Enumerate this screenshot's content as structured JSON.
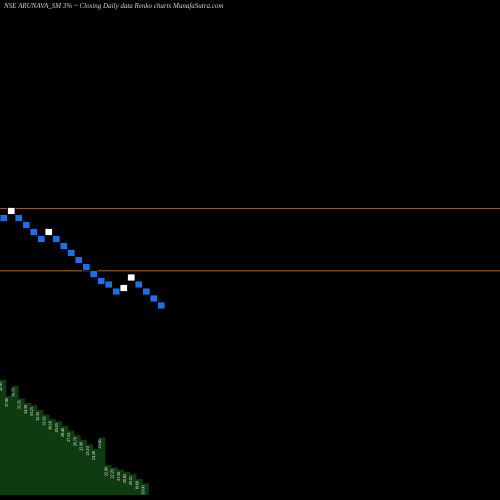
{
  "header": {
    "title": "NSE ARUNAVA_SM 3% ~  Closing Daily data  Renko  charts MunafaSutra.com"
  },
  "colors": {
    "background": "#000000",
    "up_brick": "#ffffff",
    "down_brick": "#1e6fe6",
    "level_line": "#c87b2a",
    "volume_fill": "#0e3b10"
  },
  "chart_data": {
    "type": "renko",
    "brick_size_percent": 3,
    "bricks": [
      {
        "dir": "down",
        "level": 0
      },
      {
        "dir": "up",
        "level": 1
      },
      {
        "dir": "down",
        "level": 0
      },
      {
        "dir": "down",
        "level": -1
      },
      {
        "dir": "down",
        "level": -2
      },
      {
        "dir": "down",
        "level": -3
      },
      {
        "dir": "up",
        "level": -2
      },
      {
        "dir": "down",
        "level": -3
      },
      {
        "dir": "down",
        "level": -4
      },
      {
        "dir": "down",
        "level": -5
      },
      {
        "dir": "down",
        "level": -6
      },
      {
        "dir": "down",
        "level": -7
      },
      {
        "dir": "down",
        "level": -8
      },
      {
        "dir": "down",
        "level": -9
      },
      {
        "dir": "down",
        "level": -9.5
      },
      {
        "dir": "down",
        "level": -10.5
      },
      {
        "dir": "up",
        "level": -10
      },
      {
        "dir": "up",
        "level": -8.5
      },
      {
        "dir": "down",
        "level": -9.5
      },
      {
        "dir": "down",
        "level": -10.5
      },
      {
        "dir": "down",
        "level": -11.5
      },
      {
        "dir": "down",
        "level": -12.5
      }
    ],
    "level_lines": [
      1,
      -7.9
    ],
    "volume": [
      {
        "label": "42.95",
        "height": 1.0
      },
      {
        "label": "37.90",
        "height": 0.86
      },
      {
        "label": "36.55",
        "height": 0.95
      },
      {
        "label": "35.35",
        "height": 0.84
      },
      {
        "label": "34.30",
        "height": 0.8
      },
      {
        "label": "33.25",
        "height": 0.78
      },
      {
        "label": "32.35",
        "height": 0.74
      },
      {
        "label": "31.05",
        "height": 0.7
      },
      {
        "label": "30.10",
        "height": 0.66
      },
      {
        "label": "29.20",
        "height": 0.64
      },
      {
        "label": "28.40",
        "height": 0.6
      },
      {
        "label": "27.55",
        "height": 0.56
      },
      {
        "label": "26.70",
        "height": 0.52
      },
      {
        "label": "25.90",
        "height": 0.48
      },
      {
        "label": "25.10",
        "height": 0.44
      },
      {
        "label": "24.30",
        "height": 0.4
      },
      {
        "label": "23.60",
        "height": 0.5
      },
      {
        "label": "22.90",
        "height": 0.26
      },
      {
        "label": "22.20",
        "height": 0.24
      },
      {
        "label": "21.50",
        "height": 0.22
      },
      {
        "label": "20.85",
        "height": 0.2
      },
      {
        "label": "20.25",
        "height": 0.18
      },
      {
        "label": "19.60",
        "height": 0.14
      },
      {
        "label": "19.00",
        "height": 0.1
      }
    ]
  }
}
